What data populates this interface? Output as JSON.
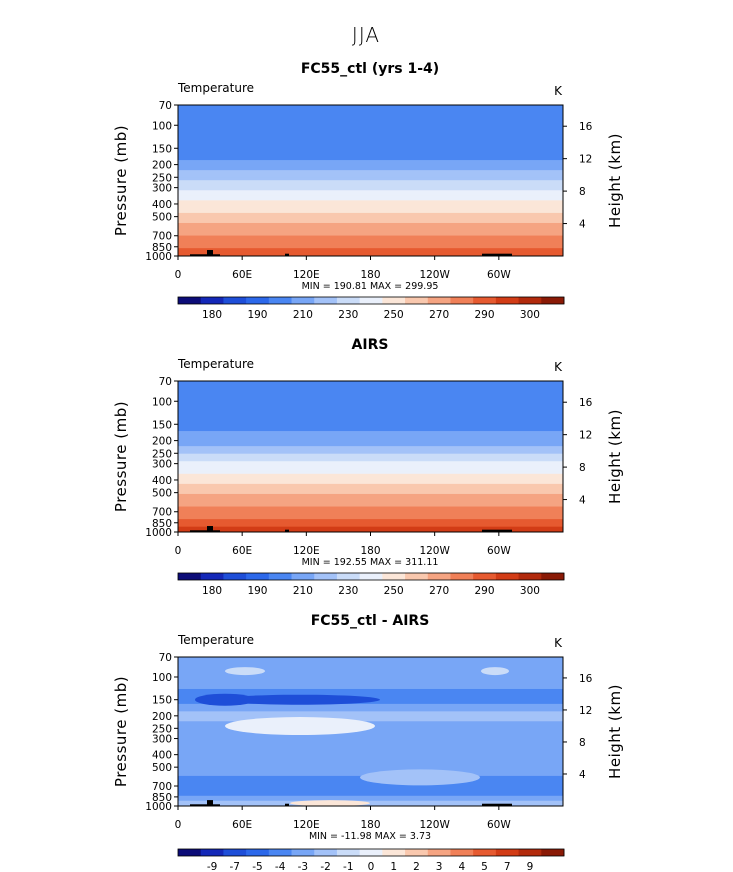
{
  "figure_title": "JJA",
  "colors": {
    "temp_palette": [
      "#0c0c78",
      "#1428b8",
      "#1e4ed8",
      "#2c68ea",
      "#4a86f2",
      "#78a6f6",
      "#a3c2f8",
      "#cadcf8",
      "#eaf0fb",
      "#fbe6d8",
      "#f9c8ae",
      "#f5a482",
      "#f08058",
      "#e65a30",
      "#d23c16",
      "#b22a0c",
      "#8a1a06"
    ],
    "diff_palette": [
      "#0c0c78",
      "#1428b8",
      "#1e4ed8",
      "#2c68ea",
      "#4a86f2",
      "#78a6f6",
      "#a3c2f8",
      "#cadcf8",
      "#eaf0fb",
      "#fbe6d8",
      "#f9c8ae",
      "#f5a482",
      "#f08058",
      "#e65a30",
      "#d23c16",
      "#b22a0c",
      "#8a1a06"
    ],
    "topography": "#000000"
  },
  "chart_data": [
    {
      "type": "heatmap",
      "title": "FC55_ctl (yrs 1-4)",
      "variable": "Temperature",
      "units": "K",
      "ylabel": "Pressure (mb)",
      "y2label": "Height (km)",
      "x_ticks": [
        "0",
        "60E",
        "120E",
        "180",
        "120W",
        "60W"
      ],
      "x_values": [
        0,
        60,
        120,
        180,
        240,
        300
      ],
      "xlim": [
        0,
        360
      ],
      "y_ticks": [
        "70",
        "100",
        "150",
        "200",
        "250",
        "300",
        "400",
        "500",
        "700",
        "850",
        "1000"
      ],
      "y_values": [
        70,
        100,
        150,
        200,
        250,
        300,
        400,
        500,
        700,
        850,
        1000
      ],
      "ylim": [
        70,
        1000
      ],
      "y2_ticks": [
        "4",
        "8",
        "12",
        "16"
      ],
      "y2_values": [
        4,
        8,
        12,
        16
      ],
      "stats": "MIN = 190.81   MAX = 299.95",
      "min": 190.81,
      "max": 299.95,
      "colorbar_ticks": [
        "180",
        "190",
        "210",
        "230",
        "250",
        "270",
        "290",
        "300"
      ],
      "level_profile": {
        "p": [
          70,
          100,
          150,
          200,
          250,
          300,
          400,
          500,
          700,
          850,
          1000
        ],
        "T": [
          206,
          201,
          203,
          213,
          226,
          238,
          252,
          264,
          280,
          288,
          296
        ]
      },
      "colorbar_levels": [
        170,
        180,
        185,
        190,
        200,
        210,
        220,
        230,
        240,
        250,
        260,
        270,
        280,
        290,
        295,
        300,
        310
      ]
    },
    {
      "type": "heatmap",
      "title": "AIRS",
      "variable": "Temperature",
      "units": "K",
      "ylabel": "Pressure (mb)",
      "y2label": "Height (km)",
      "x_ticks": [
        "0",
        "60E",
        "120E",
        "180",
        "120W",
        "60W"
      ],
      "x_values": [
        0,
        60,
        120,
        180,
        240,
        300
      ],
      "xlim": [
        0,
        360
      ],
      "y_ticks": [
        "70",
        "100",
        "150",
        "200",
        "250",
        "300",
        "400",
        "500",
        "700",
        "850",
        "1000"
      ],
      "y_values": [
        70,
        100,
        150,
        200,
        250,
        300,
        400,
        500,
        700,
        850,
        1000
      ],
      "ylim": [
        70,
        1000
      ],
      "y2_ticks": [
        "4",
        "8",
        "12",
        "16"
      ],
      "y2_values": [
        4,
        8,
        12,
        16
      ],
      "stats": "MIN = 192.55   MAX = 311.11",
      "min": 192.55,
      "max": 311.11,
      "colorbar_ticks": [
        "180",
        "190",
        "210",
        "230",
        "250",
        "270",
        "290",
        "300"
      ],
      "level_profile": {
        "p": [
          70,
          100,
          150,
          200,
          250,
          300,
          400,
          500,
          700,
          850,
          1000
        ],
        "T": [
          208,
          203,
          205,
          215,
          228,
          242,
          256,
          268,
          283,
          292,
          301
        ]
      },
      "colorbar_levels": [
        170,
        180,
        185,
        190,
        200,
        210,
        220,
        230,
        240,
        250,
        260,
        270,
        280,
        290,
        295,
        300,
        310
      ]
    },
    {
      "type": "heatmap",
      "title": "FC55_ctl - AIRS",
      "variable": "Temperature",
      "units": "K",
      "ylabel": "Pressure (mb)",
      "y2label": "Height (km)",
      "x_ticks": [
        "0",
        "60E",
        "120E",
        "180",
        "120W",
        "60W"
      ],
      "x_values": [
        0,
        60,
        120,
        180,
        240,
        300
      ],
      "xlim": [
        0,
        360
      ],
      "y_ticks": [
        "70",
        "100",
        "150",
        "200",
        "250",
        "300",
        "400",
        "500",
        "700",
        "850",
        "1000"
      ],
      "y_values": [
        70,
        100,
        150,
        200,
        250,
        300,
        400,
        500,
        700,
        850,
        1000
      ],
      "ylim": [
        70,
        1000
      ],
      "y2_ticks": [
        "4",
        "8",
        "12",
        "16"
      ],
      "y2_values": [
        4,
        8,
        12,
        16
      ],
      "stats": "MIN = -11.98   MAX =    3.73",
      "min": -11.98,
      "max": 3.73,
      "colorbar_ticks": [
        "-9",
        "-7",
        "-5",
        "-4",
        "-3",
        "-2",
        "-1",
        "0",
        "1",
        "2",
        "3",
        "4",
        "5",
        "7",
        "9"
      ],
      "level_profile": {
        "p": [
          70,
          100,
          150,
          200,
          250,
          300,
          400,
          500,
          700,
          850,
          1000
        ],
        "T": [
          -2.5,
          -2.5,
          -3.5,
          -1.5,
          -2.5,
          -3,
          -2,
          -2.5,
          -3.5,
          -3,
          -1
        ]
      },
      "colorbar_levels": [
        -11,
        -9,
        -7,
        -5,
        -4,
        -3,
        -2,
        -1,
        -0.5,
        0.5,
        1,
        2,
        3,
        4,
        5,
        7,
        9
      ]
    }
  ]
}
